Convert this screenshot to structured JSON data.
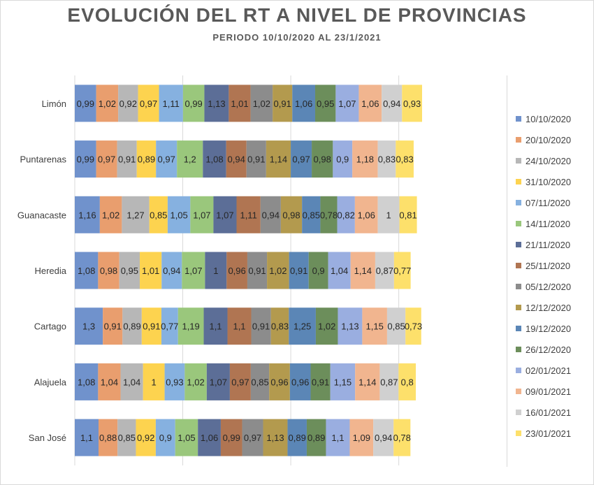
{
  "chart_data": {
    "type": "bar",
    "orientation": "horizontal-stacked",
    "title": "EVOLUCIÓN DEL RT A NIVEL DE PROVINCIAS",
    "subtitle": "PERIODO 10/10/2020 AL 23/1/2021",
    "grid": true,
    "legend_placement": "right",
    "categories": [
      "Limón",
      "Puntarenas",
      "Guanacaste",
      "Heredia",
      "Cartago",
      "Alajuela",
      "San José"
    ],
    "series": [
      {
        "name": "10/10/2020",
        "color": "#7092cc",
        "values": [
          0.99,
          0.99,
          1.16,
          1.08,
          1.3,
          1.08,
          1.1
        ]
      },
      {
        "name": "20/10/2020",
        "color": "#e99e6e",
        "values": [
          1.02,
          0.97,
          1.02,
          0.98,
          0.91,
          1.04,
          0.88
        ]
      },
      {
        "name": "24/10/2020",
        "color": "#b7b7b7",
        "values": [
          0.92,
          0.91,
          1.27,
          0.95,
          0.89,
          1.04,
          0.85
        ]
      },
      {
        "name": "31/10/2020",
        "color": "#fdd34f",
        "values": [
          0.97,
          0.89,
          0.85,
          1.01,
          0.91,
          1,
          0.92
        ]
      },
      {
        "name": "07/11/2020",
        "color": "#86b1e0",
        "values": [
          1.11,
          0.97,
          1.05,
          0.94,
          0.77,
          0.93,
          0.9
        ]
      },
      {
        "name": "14/11/2020",
        "color": "#9ac77c",
        "values": [
          0.99,
          1.2,
          1.07,
          1.07,
          1.19,
          1.02,
          1.05
        ]
      },
      {
        "name": "21/11/2020",
        "color": "#5c6e97",
        "values": [
          1.13,
          1.08,
          1.07,
          1,
          1.1,
          1.07,
          1.06
        ]
      },
      {
        "name": "25/11/2020",
        "color": "#b07552",
        "values": [
          1.01,
          0.94,
          1.11,
          0.96,
          1.1,
          0.97,
          0.99
        ]
      },
      {
        "name": "05/12/2020",
        "color": "#8c8c8c",
        "values": [
          1.02,
          0.91,
          0.94,
          0.91,
          0.91,
          0.85,
          0.97
        ]
      },
      {
        "name": "12/12/2020",
        "color": "#b39a4e",
        "values": [
          0.91,
          1.14,
          0.98,
          1.02,
          0.83,
          0.96,
          1.13
        ]
      },
      {
        "name": "19/12/2020",
        "color": "#5b86b6",
        "values": [
          1.06,
          0.97,
          0.85,
          0.91,
          1.25,
          0.96,
          0.89
        ]
      },
      {
        "name": "26/12/2020",
        "color": "#6c8e5b",
        "values": [
          0.95,
          0.98,
          0.78,
          0.9,
          1.02,
          0.91,
          0.89
        ]
      },
      {
        "name": "02/01/2021",
        "color": "#9aaee0",
        "values": [
          1.07,
          0.9,
          0.82,
          1.04,
          1.13,
          1.15,
          1.1
        ]
      },
      {
        "name": "09/01/2021",
        "color": "#f1b58f",
        "values": [
          1.06,
          1.18,
          1.06,
          1.14,
          1.15,
          1.14,
          1.09
        ]
      },
      {
        "name": "16/01/2021",
        "color": "#d0d0d0",
        "values": [
          0.94,
          0.83,
          1,
          0.87,
          0.85,
          0.87,
          0.94
        ]
      },
      {
        "name": "23/01/2021",
        "color": "#fde06b",
        "values": [
          0.93,
          0.83,
          0.81,
          0.77,
          0.73,
          0.8,
          0.78
        ]
      }
    ]
  }
}
